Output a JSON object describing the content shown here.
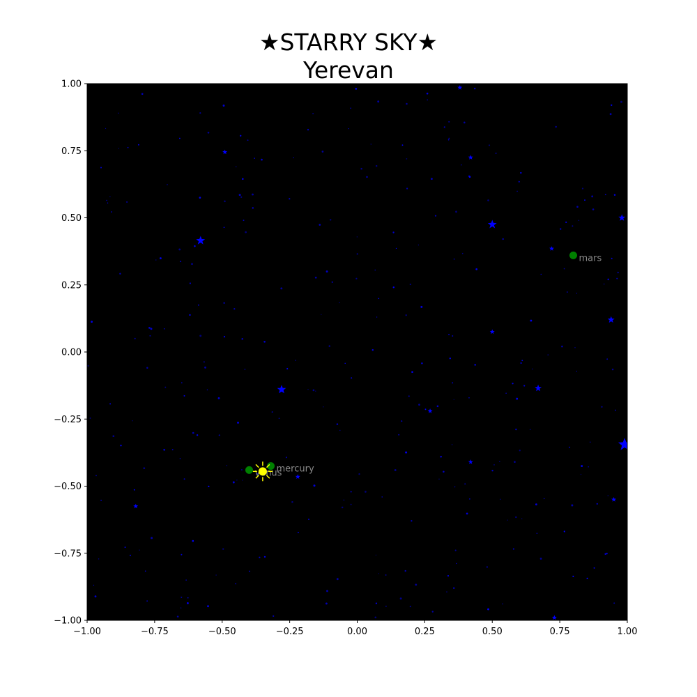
{
  "chart_data": {
    "type": "scatter",
    "title": "★STARRY SKY★",
    "subtitle": "Yerevan",
    "xlim": [
      -1.0,
      1.0
    ],
    "ylim": [
      -1.0,
      1.0
    ],
    "xticks": [
      "−1.00",
      "−0.75",
      "−0.50",
      "−0.25",
      "0.00",
      "0.25",
      "0.50",
      "0.75",
      "1.00"
    ],
    "yticks": [
      "−1.00",
      "−0.75",
      "−0.50",
      "−0.25",
      "0.00",
      "0.25",
      "0.50",
      "0.75",
      "1.00"
    ],
    "grid": false,
    "colors": {
      "background": "#000000",
      "stars": "#0000ff",
      "planets": "#008000",
      "sun": "#ffff00",
      "planet_label": "#8a8a8a"
    },
    "sun": {
      "x": -0.35,
      "y": -0.445
    },
    "planets": [
      {
        "name": "mars",
        "x": 0.8,
        "y": 0.36
      },
      {
        "name": "mercury",
        "x": -0.32,
        "y": -0.425
      },
      {
        "name": "venus",
        "x": -0.4,
        "y": -0.44
      }
    ],
    "bright_stars": [
      {
        "x": 0.99,
        "y": -0.345,
        "mag": 5
      },
      {
        "x": -0.58,
        "y": 0.415,
        "mag": 3
      },
      {
        "x": 0.5,
        "y": 0.475,
        "mag": 3
      },
      {
        "x": -0.28,
        "y": -0.14,
        "mag": 3
      },
      {
        "x": 0.94,
        "y": 0.12,
        "mag": 2
      },
      {
        "x": 0.67,
        "y": -0.135,
        "mag": 2
      },
      {
        "x": 0.98,
        "y": 0.5,
        "mag": 2
      },
      {
        "x": -0.49,
        "y": 0.745,
        "mag": 1
      },
      {
        "x": 0.5,
        "y": 0.075,
        "mag": 1
      },
      {
        "x": -0.82,
        "y": -0.575,
        "mag": 1
      },
      {
        "x": 0.42,
        "y": 0.725,
        "mag": 1
      },
      {
        "x": 0.27,
        "y": -0.22,
        "mag": 1
      },
      {
        "x": 0.42,
        "y": -0.41,
        "mag": 1
      },
      {
        "x": -0.22,
        "y": -0.465,
        "mag": 1
      },
      {
        "x": 0.72,
        "y": 0.385,
        "mag": 1
      },
      {
        "x": 0.95,
        "y": -0.55,
        "mag": 1
      },
      {
        "x": 0.73,
        "y": -0.99,
        "mag": 1
      },
      {
        "x": 0.38,
        "y": 0.985,
        "mag": 1
      }
    ],
    "faint_star_count": 320
  }
}
